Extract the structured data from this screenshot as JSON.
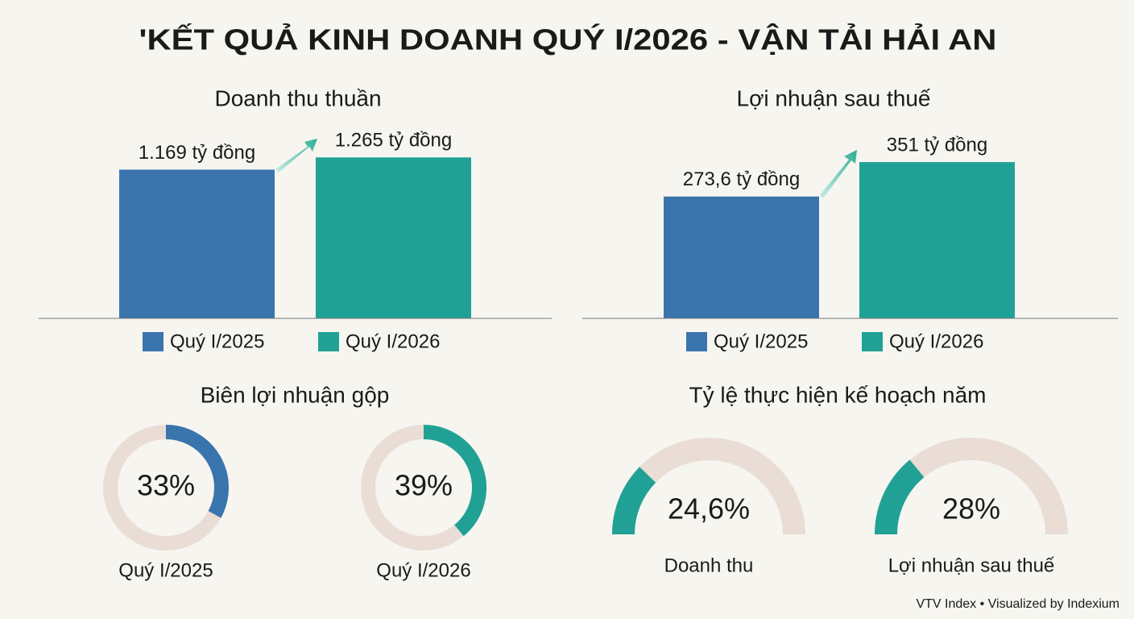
{
  "title": "'KẾT QUẢ KINH DOANH QUÝ I/2026 - VẬN TẢI HẢI AN",
  "footer": "VTV Index • Visualized by Indexium",
  "chart_data": [
    {
      "type": "bar",
      "title": "Doanh thu thuần",
      "categories": [
        "Quý I/2025",
        "Quý I/2026"
      ],
      "values": [
        1169,
        1265
      ],
      "value_labels": [
        "1.169 tỷ đồng",
        "1.265 tỷ đồng"
      ],
      "colors": [
        "#3a74ad",
        "#21a195"
      ],
      "ylim": [
        0,
        1400
      ]
    },
    {
      "type": "bar",
      "title": "Lợi nhuận sau thuế",
      "categories": [
        "Quý I/2025",
        "Quý I/2026"
      ],
      "values": [
        273.6,
        351
      ],
      "value_labels": [
        "273,6 tỷ đồng",
        "351 tỷ đồng"
      ],
      "colors": [
        "#3a74ad",
        "#21a195"
      ],
      "ylim": [
        0,
        400
      ]
    },
    {
      "type": "donut",
      "title": "Biên lợi nhuận gộp",
      "categories": [
        "Quý I/2025",
        "Quý I/2026"
      ],
      "values": [
        33,
        39
      ],
      "value_labels": [
        "33%",
        "39%"
      ],
      "colors": [
        "#3a74ad",
        "#21a195"
      ],
      "ylim": [
        0,
        100
      ]
    },
    {
      "type": "gauge",
      "title": "Tỷ lệ thực hiện kế hoạch năm",
      "categories": [
        "Doanh thu",
        "Lợi nhuận sau thuế"
      ],
      "values": [
        24.6,
        28
      ],
      "value_labels": [
        "24,6%",
        "28%"
      ],
      "colors": [
        "#21a195",
        "#21a195"
      ],
      "ylim": [
        0,
        100
      ]
    }
  ]
}
